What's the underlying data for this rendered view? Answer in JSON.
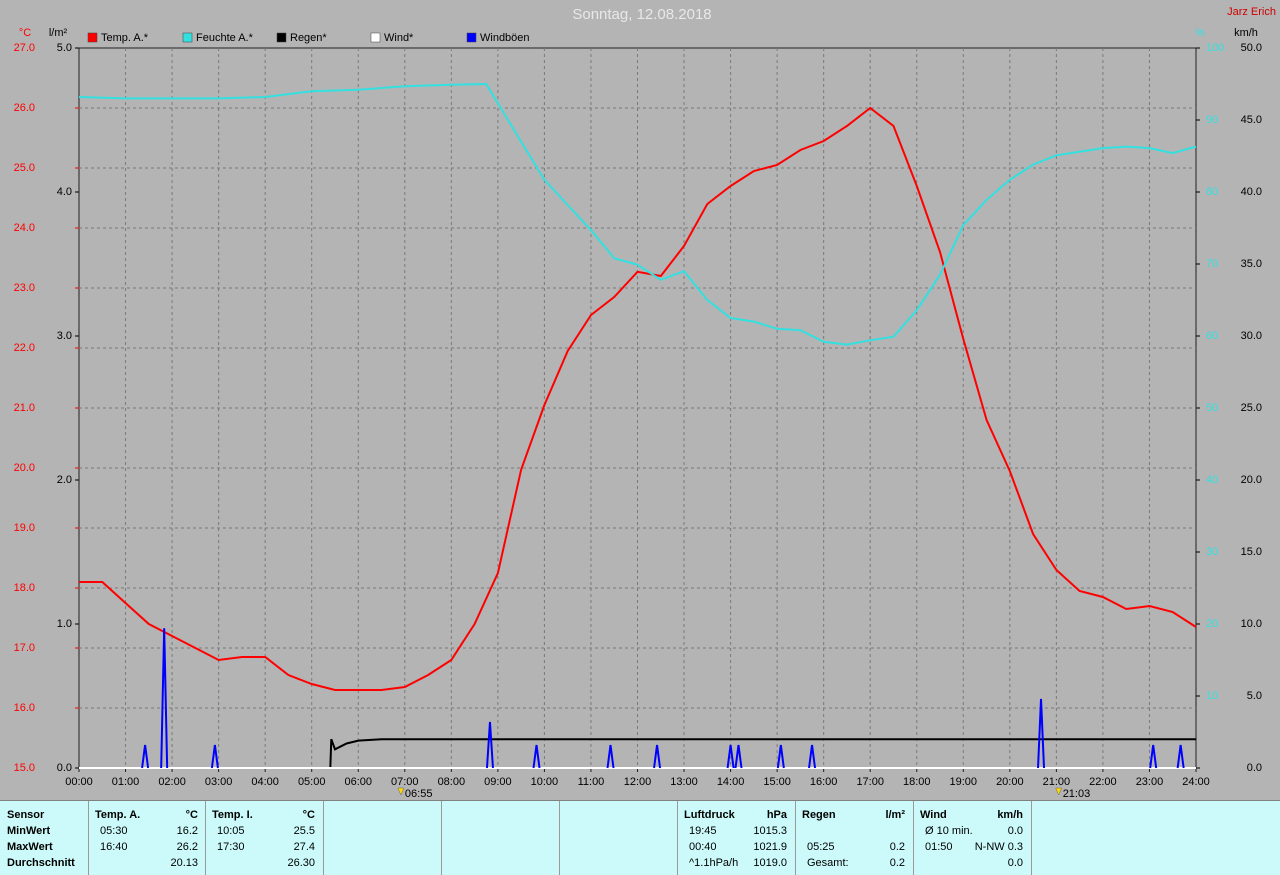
{
  "chart_data": {
    "type": "line",
    "title": "Sonntag, 12.08.2018",
    "author": "Jarz Erich",
    "xlim": [
      0,
      24
    ],
    "xticks": [
      {
        "value": 0,
        "label": "00:00"
      },
      {
        "value": 1,
        "label": "01:00"
      },
      {
        "value": 2,
        "label": "02:00"
      },
      {
        "value": 3,
        "label": "03:00"
      },
      {
        "value": 4,
        "label": "04:00"
      },
      {
        "value": 5,
        "label": "05:00"
      },
      {
        "value": 6,
        "label": "06:00"
      },
      {
        "value": 7,
        "label": "07:00"
      },
      {
        "value": 8,
        "label": "08:00"
      },
      {
        "value": 9,
        "label": "09:00"
      },
      {
        "value": 10,
        "label": "10:00"
      },
      {
        "value": 11,
        "label": "11:00"
      },
      {
        "value": 12,
        "label": "12:00"
      },
      {
        "value": 13,
        "label": "13:00"
      },
      {
        "value": 14,
        "label": "14:00"
      },
      {
        "value": 15,
        "label": "15:00"
      },
      {
        "value": 16,
        "label": "16:00"
      },
      {
        "value": 17,
        "label": "17:00"
      },
      {
        "value": 18,
        "label": "18:00"
      },
      {
        "value": 19,
        "label": "19:00"
      },
      {
        "value": 20,
        "label": "20:00"
      },
      {
        "value": 21,
        "label": "21:00"
      },
      {
        "value": 22,
        "label": "22:00"
      },
      {
        "value": 23,
        "label": "23:00"
      },
      {
        "value": 24,
        "label": "24:00"
      }
    ],
    "grid": true,
    "axes": [
      {
        "unit": "°C",
        "color": "#ff0000",
        "side": "left",
        "lim": [
          15,
          27
        ],
        "ticks": [
          {
            "value": 15,
            "label": "15.0"
          },
          {
            "value": 16,
            "label": "16.0"
          },
          {
            "value": 17,
            "label": "17.0"
          },
          {
            "value": 18,
            "label": "18.0"
          },
          {
            "value": 19,
            "label": "19.0"
          },
          {
            "value": 20,
            "label": "20.0"
          },
          {
            "value": 21,
            "label": "21.0"
          },
          {
            "value": 22,
            "label": "22.0"
          },
          {
            "value": 23,
            "label": "23.0"
          },
          {
            "value": 24,
            "label": "24.0"
          },
          {
            "value": 25,
            "label": "25.0"
          },
          {
            "value": 26,
            "label": "26.0"
          },
          {
            "value": 27,
            "label": "27.0"
          }
        ]
      },
      {
        "unit": "l/m²",
        "color": "#000000",
        "side": "left",
        "lim": [
          0,
          5
        ],
        "ticks": [
          {
            "value": 0,
            "label": "0.0"
          },
          {
            "value": 1,
            "label": "1.0"
          },
          {
            "value": 2,
            "label": "2.0"
          },
          {
            "value": 3,
            "label": "3.0"
          },
          {
            "value": 4,
            "label": "4.0"
          },
          {
            "value": 5,
            "label": "5.0"
          }
        ]
      },
      {
        "unit": "%",
        "color": "#33e0e0",
        "side": "right",
        "lim": [
          0,
          100
        ],
        "ticks": [
          10,
          20,
          30,
          40,
          50,
          60,
          70,
          80,
          90,
          100
        ]
      },
      {
        "unit": "km/h",
        "color": "#000000",
        "side": "right",
        "lim": [
          0,
          50
        ],
        "ticks": [
          {
            "value": 0,
            "label": "0.0"
          },
          {
            "value": 5,
            "label": "5.0"
          },
          {
            "value": 10,
            "label": "10.0"
          },
          {
            "value": 15,
            "label": "15.0"
          },
          {
            "value": 20,
            "label": "20.0"
          },
          {
            "value": 25,
            "label": "25.0"
          },
          {
            "value": 30,
            "label": "30.0"
          },
          {
            "value": 35,
            "label": "35.0"
          },
          {
            "value": 40,
            "label": "40.0"
          },
          {
            "value": 45,
            "label": "45.0"
          },
          {
            "value": 50,
            "label": "50.0"
          }
        ]
      }
    ],
    "series": [
      {
        "name": "Temp. A.*",
        "color": "#ff0000",
        "axis": 0,
        "style": "line",
        "x": [
          0,
          0.5,
          1,
          1.5,
          2,
          2.5,
          3,
          3.5,
          4,
          4.5,
          5,
          5.5,
          6,
          6.5,
          7,
          7.5,
          8,
          8.5,
          9,
          9.5,
          10,
          10.5,
          11,
          11.5,
          12,
          12.5,
          13,
          13.5,
          14,
          14.5,
          15,
          15.5,
          16,
          16.5,
          17,
          17.5,
          18,
          18.5,
          19,
          19.5,
          20,
          20.5,
          21,
          21.5,
          22,
          22.5,
          23,
          23.5,
          24
        ],
        "values": [
          18.1,
          18.1,
          17.75,
          17.4,
          17.2,
          17.0,
          16.8,
          16.85,
          16.85,
          16.55,
          16.4,
          16.3,
          16.3,
          16.3,
          16.35,
          16.55,
          16.8,
          17.4,
          18.25,
          19.97,
          21.05,
          21.95,
          22.55,
          22.85,
          23.27,
          23.2,
          23.7,
          24.4,
          24.7,
          24.95,
          25.05,
          25.3,
          25.45,
          25.7,
          26.0,
          25.7,
          24.7,
          23.6,
          22.15,
          20.8,
          19.95,
          18.9,
          18.3,
          17.95,
          17.85,
          17.65,
          17.7,
          17.6,
          17.35
        ]
      },
      {
        "name": "Feuchte A.*",
        "color": "#33e0e0",
        "axis": 2,
        "style": "line",
        "x": [
          0,
          1,
          2,
          3,
          4,
          5,
          6,
          7,
          8,
          8.75,
          9.5,
          10,
          10.5,
          11,
          11.5,
          12,
          12.5,
          13,
          13.5,
          14,
          14.5,
          15,
          15.5,
          16,
          16.5,
          17,
          17.5,
          18,
          18.5,
          19,
          19.5,
          20,
          20.5,
          21,
          21.5,
          22,
          22.5,
          23,
          23.5,
          24
        ],
        "values": [
          93.2,
          93,
          93,
          93,
          93.2,
          94,
          94.2,
          94.7,
          94.9,
          95,
          87,
          81.7,
          78.2,
          74.7,
          70.8,
          69.9,
          67.8,
          69,
          65,
          62.5,
          62,
          61,
          60.8,
          59.2,
          58.8,
          59.4,
          59.9,
          63.6,
          68.5,
          75.4,
          78.9,
          81.7,
          83.8,
          85.1,
          85.6,
          86.1,
          86.3,
          86.1,
          85.4,
          86.3
        ]
      },
      {
        "name": "Regen*",
        "color": "#000000",
        "axis": 1,
        "style": "line",
        "x": [
          0,
          5.4,
          5.42,
          5.5,
          5.75,
          6,
          6.5,
          7,
          24
        ],
        "values": [
          0,
          0,
          0.2,
          0.13,
          0.17,
          0.19,
          0.2,
          0.2,
          0.2
        ]
      },
      {
        "name": "Wind*",
        "color": "#ffffff",
        "axis": 3,
        "style": "line",
        "x": [
          0,
          24
        ],
        "values": [
          0,
          0
        ]
      },
      {
        "name": "Windböen",
        "color": "#0000ff",
        "axis": 3,
        "style": "spike",
        "x": [
          1.42,
          1.83,
          2.92,
          8.83,
          9.83,
          11.42,
          12.42,
          14.0,
          14.17,
          15.08,
          15.75,
          20.67,
          23.08,
          23.67
        ],
        "values": [
          1.6,
          9.7,
          1.6,
          3.2,
          1.6,
          1.6,
          1.6,
          1.6,
          1.6,
          1.6,
          1.6,
          4.8,
          1.6,
          1.6
        ]
      }
    ],
    "sun_events": [
      {
        "x": 6.9167,
        "label": "06:55"
      },
      {
        "x": 21.05,
        "label": "21:03"
      }
    ]
  },
  "stats": {
    "row_labels": [
      "Sensor",
      "MinWert",
      "MaxWert",
      "Durchschnitt"
    ],
    "groups": [
      {
        "title": "Temp. A.",
        "unit": "°C",
        "rows": [
          [
            "05:30",
            "16.2"
          ],
          [
            "16:40",
            "26.2"
          ],
          [
            null,
            "20.13"
          ]
        ]
      },
      {
        "title": "Temp. I.",
        "unit": "°C",
        "rows": [
          [
            "10:05",
            "25.5"
          ],
          [
            "17:30",
            "27.4"
          ],
          [
            null,
            "26.30"
          ]
        ]
      },
      {
        "title": "Luftdruck",
        "unit": "hPa",
        "rows": [
          [
            "19:45",
            "1015.3"
          ],
          [
            "00:40",
            "1021.9"
          ],
          [
            "^1.1hPa/h",
            "1019.0"
          ]
        ]
      },
      {
        "title": "Regen",
        "unit": "l/m²",
        "rows": [
          [
            null,
            null
          ],
          [
            "05:25",
            "0.2"
          ],
          [
            "Gesamt:",
            "0.2"
          ]
        ]
      },
      {
        "title": "Wind",
        "unit": "km/h",
        "rows": [
          [
            "Ø 10 min.",
            "0.0"
          ],
          [
            "01:50",
            "N-NW 0.3"
          ],
          [
            null,
            "0.0"
          ]
        ]
      }
    ]
  }
}
